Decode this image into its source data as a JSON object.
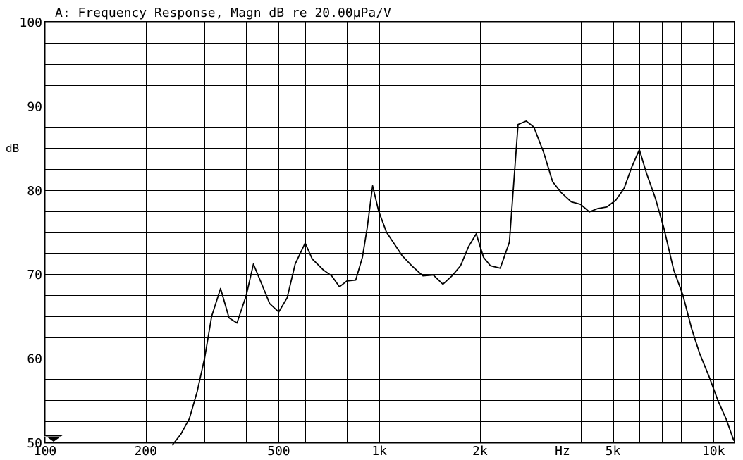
{
  "chart_data": {
    "type": "line",
    "title": "A: Frequency Response, Magn dB re 20.00µPa/V",
    "xlabel": "Hz",
    "ylabel": "dB",
    "xscale": "log",
    "xlim": [
      100,
      11500
    ],
    "ylim": [
      50,
      100
    ],
    "grid": true,
    "x_tick_labels": [
      {
        "value": 100,
        "label": "100"
      },
      {
        "value": 200,
        "label": "200"
      },
      {
        "value": 500,
        "label": "500"
      },
      {
        "value": 1000,
        "label": "1k"
      },
      {
        "value": 2000,
        "label": "2k"
      },
      {
        "value": 5000,
        "label": "5k"
      },
      {
        "value": 10000,
        "label": "10k"
      }
    ],
    "y_tick_labels": [
      {
        "value": 50,
        "label": "50"
      },
      {
        "value": 60,
        "label": "60"
      },
      {
        "value": 70,
        "label": "70"
      },
      {
        "value": 80,
        "label": "80"
      },
      {
        "value": 90,
        "label": "90"
      },
      {
        "value": 100,
        "label": "100"
      }
    ],
    "series": [
      {
        "points": [
          [
            240,
            49.5
          ],
          [
            255,
            51.0
          ],
          [
            270,
            52.8
          ],
          [
            285,
            56.0
          ],
          [
            300,
            60.0
          ],
          [
            315,
            65.0
          ],
          [
            335,
            68.3
          ],
          [
            355,
            64.8
          ],
          [
            375,
            64.2
          ],
          [
            400,
            67.5
          ],
          [
            420,
            71.2
          ],
          [
            445,
            68.8
          ],
          [
            470,
            66.5
          ],
          [
            500,
            65.5
          ],
          [
            530,
            67.2
          ],
          [
            560,
            71.2
          ],
          [
            600,
            73.7
          ],
          [
            630,
            71.8
          ],
          [
            680,
            70.5
          ],
          [
            720,
            69.8
          ],
          [
            760,
            68.5
          ],
          [
            800,
            69.2
          ],
          [
            850,
            69.3
          ],
          [
            890,
            72.0
          ],
          [
            920,
            75.5
          ],
          [
            955,
            80.5
          ],
          [
            995,
            77.5
          ],
          [
            1050,
            75.0
          ],
          [
            1100,
            73.8
          ],
          [
            1170,
            72.2
          ],
          [
            1250,
            71.0
          ],
          [
            1350,
            69.8
          ],
          [
            1450,
            69.9
          ],
          [
            1550,
            68.8
          ],
          [
            1650,
            69.8
          ],
          [
            1750,
            71.0
          ],
          [
            1850,
            73.3
          ],
          [
            1950,
            74.8
          ],
          [
            2050,
            72.0
          ],
          [
            2150,
            71.0
          ],
          [
            2300,
            70.7
          ],
          [
            2450,
            73.8
          ],
          [
            2600,
            87.8
          ],
          [
            2750,
            88.2
          ],
          [
            2900,
            87.5
          ],
          [
            3100,
            84.5
          ],
          [
            3300,
            81.0
          ],
          [
            3500,
            79.7
          ],
          [
            3750,
            78.6
          ],
          [
            4000,
            78.3
          ],
          [
            4250,
            77.4
          ],
          [
            4500,
            77.8
          ],
          [
            4800,
            78.0
          ],
          [
            5100,
            78.8
          ],
          [
            5400,
            80.2
          ],
          [
            5700,
            82.8
          ],
          [
            6000,
            84.8
          ],
          [
            6300,
            82.0
          ],
          [
            6700,
            79.0
          ],
          [
            7100,
            75.5
          ],
          [
            7600,
            70.5
          ],
          [
            8100,
            67.5
          ],
          [
            8600,
            63.5
          ],
          [
            9100,
            60.5
          ],
          [
            9700,
            57.8
          ],
          [
            10300,
            55.0
          ],
          [
            10900,
            52.8
          ],
          [
            11500,
            50.2
          ]
        ]
      }
    ]
  }
}
